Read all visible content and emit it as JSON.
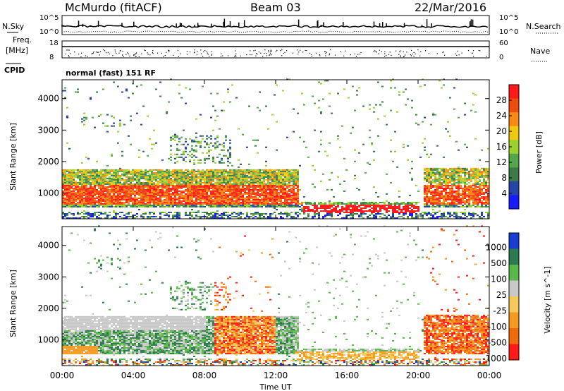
{
  "header": {
    "station": "McMurdo (fitACF)",
    "beam": "Beam 03",
    "date": "22/Mar/2016"
  },
  "top_panels": {
    "nsky_label": "N.Sky",
    "nsky_ticks": [
      "10^5",
      "10^0"
    ],
    "nsearch_label": "N.Search",
    "freq_label_1": "Freq.",
    "freq_label_2": "[MHz]",
    "freq_ticks": [
      "18",
      "8"
    ],
    "nave_label": "Nave",
    "nave_ticks": [
      "60",
      "0"
    ],
    "cpid_label": "CPID",
    "cpid_value": "normal (fast) 151 RF",
    "right_nsky_ticks": [
      "10^5",
      "10^0"
    ]
  },
  "time_axis": {
    "label": "Time UT",
    "ticks": [
      "00:00",
      "04:00",
      "08:00",
      "12:00",
      "16:00",
      "20:00",
      "00:00"
    ]
  },
  "chart_data": [
    {
      "type": "heatmap",
      "title": "",
      "xlabel": "Time UT",
      "ylabel": "Slant Range [km]",
      "xlim": [
        0,
        24
      ],
      "ylim": [
        180,
        4600
      ],
      "ytick_labels": [
        "1000",
        "2000",
        "3000",
        "4000"
      ],
      "colorbar": {
        "label": "Power [dB]",
        "range": [
          0,
          30
        ],
        "tick_labels": [
          "4",
          "8",
          "12",
          "16",
          "20",
          "24",
          "28"
        ]
      }
    },
    {
      "type": "heatmap",
      "title": "",
      "xlabel": "Time UT",
      "ylabel": "Slant Range [km]",
      "xlim": [
        0,
        24
      ],
      "ylim": [
        180,
        4600
      ],
      "ytick_labels": [
        "1000",
        "2000",
        "3000",
        "4000"
      ],
      "colorbar": {
        "label": "Velocity [m s^-1]",
        "tick_labels": [
          "1000",
          "500",
          "100",
          "25",
          "-25",
          "-100",
          "-500",
          "-1000"
        ]
      }
    }
  ],
  "colors": {
    "power": [
      "#1a1aff",
      "#2546a8",
      "#3c7a4a",
      "#53a64a",
      "#9cd02f",
      "#f0c80f",
      "#f58a14",
      "#ef4c10",
      "#ff1a1a"
    ],
    "velocity": [
      "#1a3cd0",
      "#2e7a50",
      "#5ab84a",
      "#c8c8c8",
      "#f5c85a",
      "#f59a20",
      "#f06a10",
      "#ff1a1a"
    ]
  }
}
